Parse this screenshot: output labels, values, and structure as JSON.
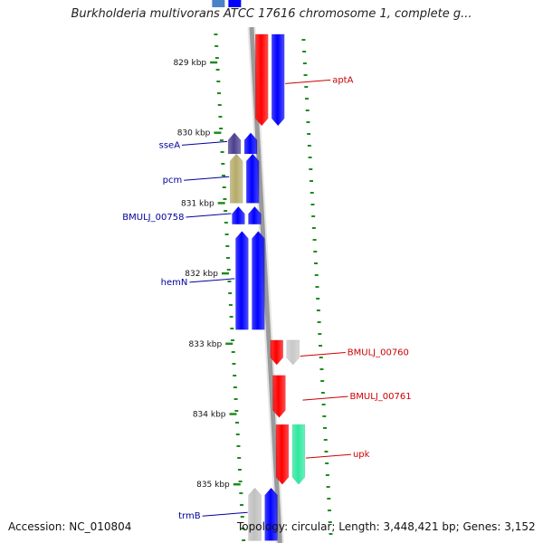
{
  "title": "Burkholderia multivorans ATCC 17616 chromosome 1, complete g...",
  "accession": "Accession: NC_010804",
  "summary": "Topology: circular; Length: 3,448,421 bp; Genes: 3,152",
  "colors": {
    "backbone": "#9a9a9a",
    "tick": "#1f8a1f",
    "label_left": "#000099",
    "label_right": "#cc0000"
  },
  "ticks": [
    {
      "label": "829 kbp",
      "kbp": 829
    },
    {
      "label": "830 kbp",
      "kbp": 830
    },
    {
      "label": "831 kbp",
      "kbp": 831
    },
    {
      "label": "832 kbp",
      "kbp": 832
    },
    {
      "label": "833 kbp",
      "kbp": 833
    },
    {
      "label": "834 kbp",
      "kbp": 834
    },
    {
      "label": "835 kbp",
      "kbp": 835
    }
  ],
  "genes": [
    {
      "name": "aptA",
      "strand": "+",
      "start_kbp": 828.6,
      "end_kbp": 829.9,
      "color": "#ff0000",
      "color2": "#0000ff",
      "labeled": true
    },
    {
      "name": "sseA",
      "strand": "-",
      "start_kbp": 830.0,
      "end_kbp": 830.3,
      "color": "#4b3f8f",
      "color2": "#0000ff",
      "labeled": true
    },
    {
      "name": "pcm",
      "strand": "-",
      "start_kbp": 830.3,
      "end_kbp": 831.0,
      "color": "#b5ab6a",
      "color2": "#0000ff",
      "labeled": true
    },
    {
      "name": "BMULJ_00758",
      "strand": "-",
      "start_kbp": 831.05,
      "end_kbp": 831.3,
      "color": "#0000ff",
      "color2": "#0000ff",
      "labeled": true
    },
    {
      "name": "hemN",
      "strand": "-",
      "start_kbp": 831.4,
      "end_kbp": 832.8,
      "color": "#0000ff",
      "color2": "#0000ff",
      "labeled": true
    },
    {
      "name": "BMULJ_00760",
      "strand": "+",
      "start_kbp": 832.95,
      "end_kbp": 833.3,
      "color": "#ff0000",
      "color2": "#c8c8c8",
      "labeled": true
    },
    {
      "name": "BMULJ_00761",
      "strand": "+",
      "start_kbp": 833.45,
      "end_kbp": 834.05,
      "color": "#ff0000",
      "color2": null,
      "labeled": true
    },
    {
      "name": "upk",
      "strand": "+",
      "start_kbp": 834.15,
      "end_kbp": 835.0,
      "color": "#ff0000",
      "color2": "#2ee8a0",
      "labeled": true
    },
    {
      "name": "trmB",
      "strand": "-",
      "start_kbp": 835.05,
      "end_kbp": 835.8,
      "color": "#c0c0c0",
      "color2": "#0000ff",
      "labeled": true
    }
  ]
}
